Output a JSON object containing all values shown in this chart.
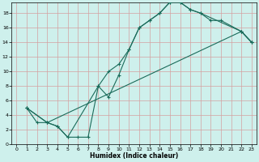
{
  "title": "",
  "xlabel": "Humidex (Indice chaleur)",
  "bg_color": "#cef0ec",
  "grid_color": "#d4a0a0",
  "line_color": "#1a6b5a",
  "marker": "+",
  "markersize": 3,
  "linewidth": 0.8,
  "xlim": [
    -0.5,
    23.5
  ],
  "ylim": [
    0,
    19.5
  ],
  "xticks": [
    0,
    1,
    2,
    3,
    4,
    5,
    6,
    7,
    8,
    9,
    10,
    11,
    12,
    13,
    14,
    15,
    16,
    17,
    18,
    19,
    20,
    21,
    22,
    23
  ],
  "yticks": [
    0,
    2,
    4,
    6,
    8,
    10,
    12,
    14,
    16,
    18
  ],
  "curve1_x": [
    1,
    2,
    3,
    4,
    5,
    6,
    7,
    8,
    9,
    10,
    11,
    12,
    13,
    14,
    15,
    16,
    17,
    18,
    19,
    20,
    22,
    23
  ],
  "curve1_y": [
    5,
    3,
    3,
    2.5,
    1,
    1,
    1,
    8,
    10,
    11,
    13,
    16,
    17,
    18,
    19.5,
    19.5,
    18.5,
    18,
    17,
    17,
    15.5,
    14
  ],
  "curve2_x": [
    1,
    3,
    4,
    5,
    8,
    9,
    10,
    11,
    12,
    13,
    14,
    15,
    16,
    17,
    18,
    22,
    23
  ],
  "curve2_y": [
    5,
    3,
    2.5,
    1,
    8,
    6.5,
    9.5,
    13,
    16,
    17,
    18,
    19.5,
    19.5,
    18.5,
    18,
    15.5,
    14
  ],
  "curve3_x": [
    1,
    3,
    22,
    23
  ],
  "curve3_y": [
    5,
    3,
    15.5,
    14
  ]
}
